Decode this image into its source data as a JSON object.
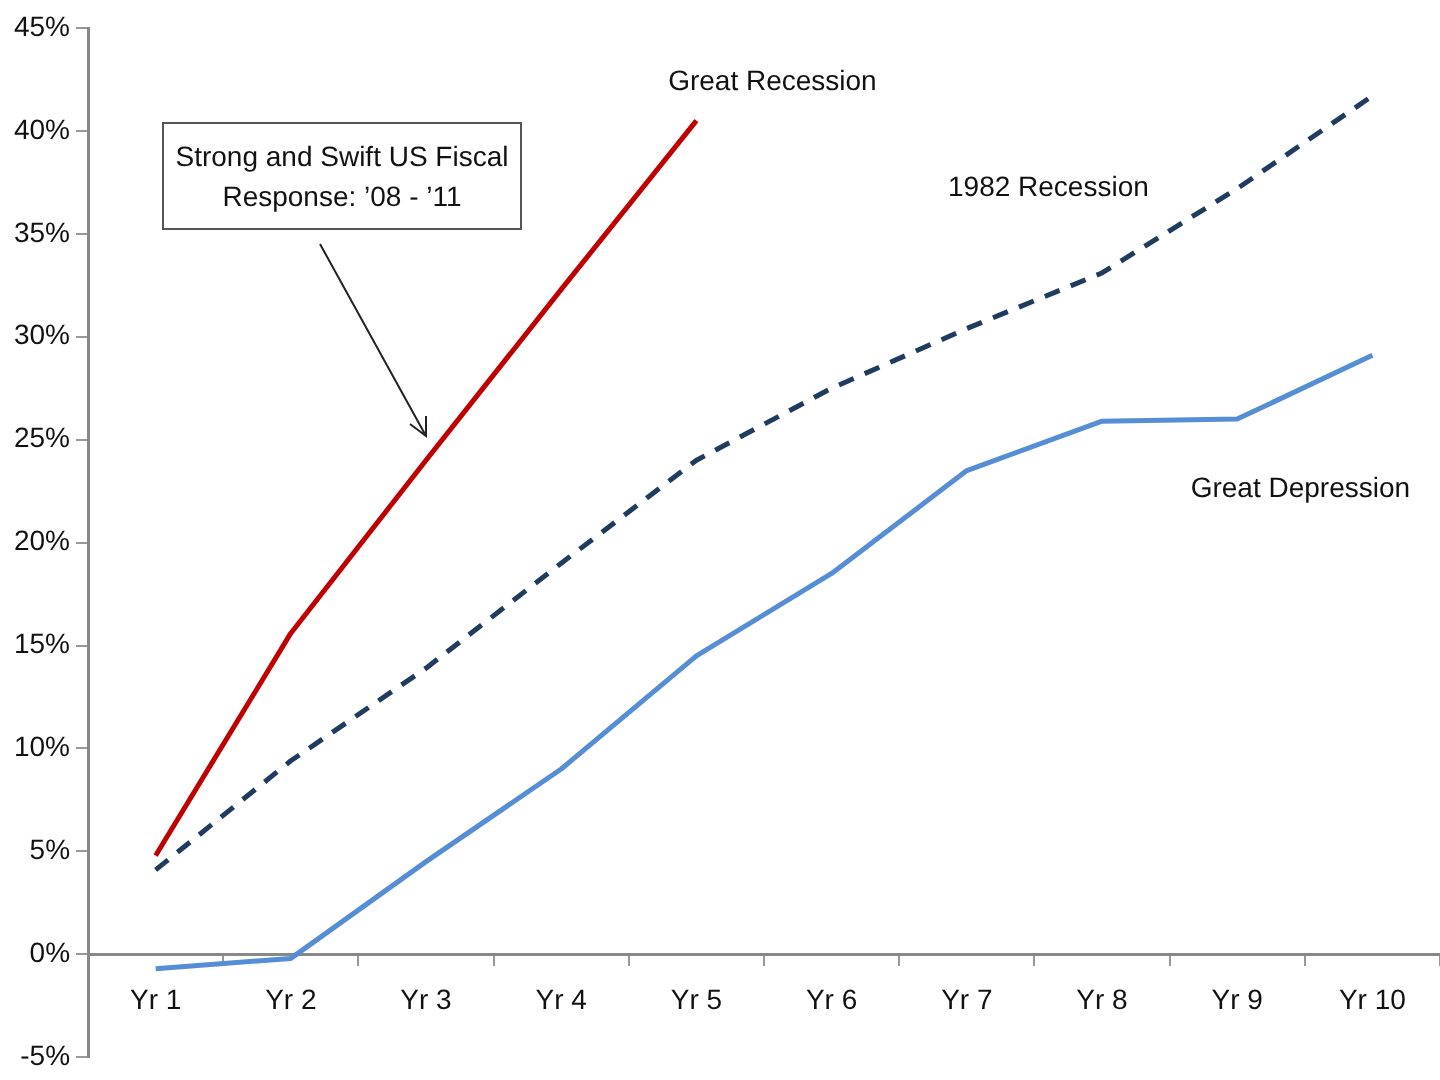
{
  "chart_data": {
    "type": "line",
    "categories": [
      "Yr 1",
      "Yr 2",
      "Yr 3",
      "Yr 4",
      "Yr 5",
      "Yr 6",
      "Yr 7",
      "Yr 8",
      "Yr 9",
      "Yr 10"
    ],
    "series": [
      {
        "name": "Great Recession",
        "color": "#c00000",
        "line_style": "solid",
        "values": [
          4.8,
          15.6,
          24.0,
          32.3,
          40.5,
          null,
          null,
          null,
          null,
          null
        ]
      },
      {
        "name": "1982 Recession",
        "color": "#1f3b5e",
        "line_style": "dashed",
        "values": [
          4.1,
          9.4,
          13.9,
          19.0,
          24.0,
          27.5,
          30.4,
          33.1,
          37.2,
          41.7
        ]
      },
      {
        "name": "Great Depression",
        "color": "#558ed5",
        "line_style": "solid",
        "values": [
          -0.7,
          -0.2,
          4.5,
          9.0,
          14.5,
          18.5,
          23.5,
          25.9,
          26.0,
          29.1
        ]
      }
    ],
    "ylim": [
      -5,
      45
    ],
    "yticks": [
      {
        "value": -5,
        "label": "-5%"
      },
      {
        "value": 0,
        "label": "0%"
      },
      {
        "value": 5,
        "label": "5%"
      },
      {
        "value": 10,
        "label": "10%"
      },
      {
        "value": 15,
        "label": "15%"
      },
      {
        "value": 20,
        "label": "20%"
      },
      {
        "value": 25,
        "label": "25%"
      },
      {
        "value": 30,
        "label": "30%"
      },
      {
        "value": 35,
        "label": "35%"
      },
      {
        "value": 40,
        "label": "40%"
      },
      {
        "value": 45,
        "label": "45%"
      }
    ],
    "annotations": [
      "Strong and Swift US Fiscal Response:  ’08 - ’11"
    ],
    "marker": "none",
    "legend": false
  }
}
